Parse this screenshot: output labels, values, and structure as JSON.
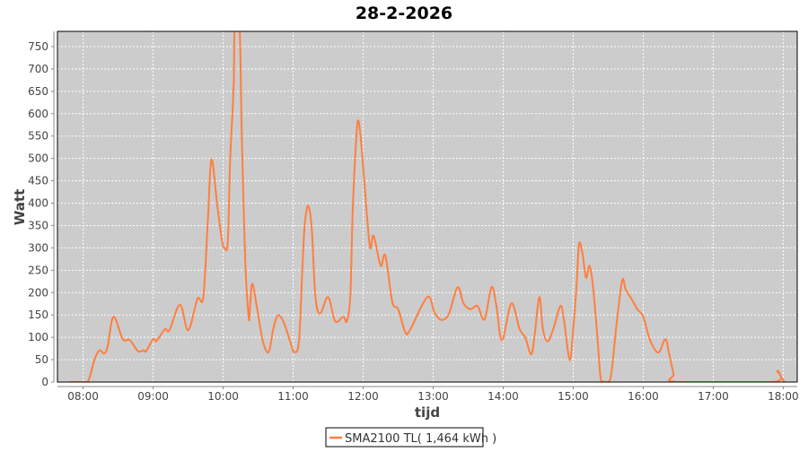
{
  "chart_data": {
    "type": "line",
    "title": "28-2-2026",
    "xlabel": "tijd",
    "ylabel": "Watt",
    "xlim": [
      "07:38",
      "18:12"
    ],
    "ylim": [
      0,
      784
    ],
    "x_ticks": [
      "08:00",
      "09:00",
      "10:00",
      "11:00",
      "12:00",
      "13:00",
      "14:00",
      "15:00",
      "16:00",
      "17:00",
      "18:00"
    ],
    "y_ticks": [
      0,
      50,
      100,
      150,
      200,
      250,
      300,
      350,
      400,
      450,
      500,
      550,
      600,
      650,
      700,
      750
    ],
    "grid": true,
    "legend_position": "bottom",
    "colors": {
      "plot_background": "#cccccc",
      "grid": "#ffffff",
      "series": "#ff7f3f"
    },
    "series": [
      {
        "name": "SMA2100 TL( 1,464 kWh )",
        "points": [
          [
            "07:49",
            0
          ],
          [
            "07:58",
            0
          ],
          [
            "08:04",
            0
          ],
          [
            "08:10",
            52
          ],
          [
            "08:14",
            71
          ],
          [
            "08:18",
            64
          ],
          [
            "08:21",
            79
          ],
          [
            "08:26",
            146
          ],
          [
            "08:34",
            96
          ],
          [
            "08:40",
            94
          ],
          [
            "08:47",
            69
          ],
          [
            "08:52",
            71
          ],
          [
            "08:54",
            69
          ],
          [
            "09:00",
            96
          ],
          [
            "09:03",
            92
          ],
          [
            "09:10",
            118
          ],
          [
            "09:14",
            116
          ],
          [
            "09:23",
            173
          ],
          [
            "09:30",
            116
          ],
          [
            "09:38",
            186
          ],
          [
            "09:43",
            190
          ],
          [
            "09:47",
            367
          ],
          [
            "09:50",
            498
          ],
          [
            "09:55",
            394
          ],
          [
            "09:59",
            317
          ],
          [
            "10:01",
            300
          ],
          [
            "10:04",
            314
          ],
          [
            "10:06",
            495
          ],
          [
            "10:09",
            662
          ],
          [
            "10:10",
            800
          ],
          [
            "10:14",
            800
          ],
          [
            "10:16",
            548
          ],
          [
            "10:19",
            267
          ],
          [
            "10:22",
            143
          ],
          [
            "10:23",
            166
          ],
          [
            "10:25",
            220
          ],
          [
            "10:29",
            166
          ],
          [
            "10:34",
            92
          ],
          [
            "10:39",
            67
          ],
          [
            "10:43",
            119
          ],
          [
            "10:47",
            149
          ],
          [
            "10:52",
            133
          ],
          [
            "10:58",
            86
          ],
          [
            "11:01",
            67
          ],
          [
            "11:05",
            92
          ],
          [
            "11:08",
            260
          ],
          [
            "11:10",
            354
          ],
          [
            "11:13",
            394
          ],
          [
            "11:16",
            340
          ],
          [
            "11:19",
            193
          ],
          [
            "11:23",
            153
          ],
          [
            "11:30",
            190
          ],
          [
            "11:36",
            136
          ],
          [
            "11:43",
            146
          ],
          [
            "11:46",
            136
          ],
          [
            "11:49",
            193
          ],
          [
            "11:51",
            380
          ],
          [
            "11:54",
            541
          ],
          [
            "11:56",
            584
          ],
          [
            "11:59",
            514
          ],
          [
            "12:03",
            380
          ],
          [
            "12:06",
            300
          ],
          [
            "12:09",
            327
          ],
          [
            "12:15",
            260
          ],
          [
            "12:19",
            283
          ],
          [
            "12:25",
            179
          ],
          [
            "12:30",
            163
          ],
          [
            "12:36",
            112
          ],
          [
            "12:40",
            116
          ],
          [
            "12:55",
            190
          ],
          [
            "13:01",
            156
          ],
          [
            "13:06",
            140
          ],
          [
            "13:10",
            141
          ],
          [
            "13:14",
            156
          ],
          [
            "13:21",
            212
          ],
          [
            "13:26",
            176
          ],
          [
            "13:32",
            163
          ],
          [
            "13:38",
            170
          ],
          [
            "13:44",
            140
          ],
          [
            "13:50",
            212
          ],
          [
            "13:54",
            173
          ],
          [
            "13:59",
            93
          ],
          [
            "14:07",
            176
          ],
          [
            "14:14",
            119
          ],
          [
            "14:19",
            99
          ],
          [
            "14:24",
            62
          ],
          [
            "14:27",
            106
          ],
          [
            "14:31",
            190
          ],
          [
            "14:34",
            119
          ],
          [
            "14:38",
            91
          ],
          [
            "14:43",
            119
          ],
          [
            "14:49",
            170
          ],
          [
            "14:52",
            140
          ],
          [
            "14:57",
            49
          ],
          [
            "15:00",
            119
          ],
          [
            "15:03",
            220
          ],
          [
            "15:05",
            309
          ],
          [
            "15:08",
            287
          ],
          [
            "15:11",
            233
          ],
          [
            "15:14",
            260
          ],
          [
            "15:17",
            213
          ],
          [
            "15:21",
            93
          ],
          [
            "15:24",
            2
          ],
          [
            "15:30",
            0
          ],
          [
            "15:33",
            25
          ],
          [
            "15:37",
            126
          ],
          [
            "15:42",
            227
          ],
          [
            "15:45",
            207
          ],
          [
            "15:50",
            186
          ],
          [
            "15:55",
            163
          ],
          [
            "16:00",
            146
          ],
          [
            "16:06",
            93
          ],
          [
            "16:13",
            66
          ],
          [
            "16:19",
            96
          ],
          [
            "16:22",
            66
          ],
          [
            "16:26",
            19
          ],
          [
            "16:29",
            0
          ],
          [
            "17:51",
            0
          ],
          [
            "17:55",
            25
          ],
          [
            "17:58",
            12
          ],
          [
            "18:01",
            0
          ]
        ]
      }
    ]
  }
}
